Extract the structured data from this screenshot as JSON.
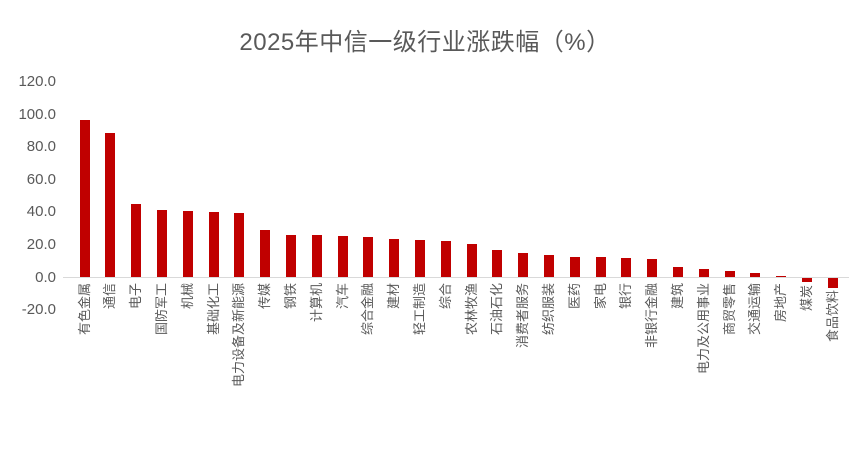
{
  "title": "2025年中信一级行业涨跌幅（%）",
  "colors": {
    "bar": "#C00000",
    "axis_line": "#D9D9D9",
    "tick_text": "#595959",
    "title_text": "#595959"
  },
  "chart_data": {
    "type": "bar",
    "title": "2025年中信一级行业涨跌幅（%）",
    "categories": [
      "有色金属",
      "通信",
      "电子",
      "国防军工",
      "机械",
      "基础化工",
      "电力设备及新能源",
      "传媒",
      "钢铁",
      "计算机",
      "汽车",
      "综合金融",
      "建材",
      "轻工制造",
      "综合",
      "农林牧渔",
      "石油石化",
      "消费者服务",
      "纺织服装",
      "医药",
      "家电",
      "银行",
      "非银行金融",
      "建筑",
      "电力及公用事业",
      "商贸零售",
      "交通运输",
      "房地产",
      "煤炭",
      "食品饮料"
    ],
    "values": [
      97.0,
      88.7,
      45.0,
      41.6,
      41.0,
      40.0,
      39.3,
      29.3,
      26.4,
      26.1,
      25.5,
      24.6,
      23.9,
      23.0,
      22.2,
      20.8,
      16.7,
      14.8,
      13.8,
      12.6,
      12.3,
      11.7,
      11.2,
      6.5,
      5.0,
      4.0,
      2.5,
      1.2,
      -2.8,
      -6.4
    ],
    "xlabel": "",
    "ylabel": "",
    "ylim": [
      -20,
      120
    ],
    "y_ticks": [
      120,
      100,
      80,
      60,
      40,
      20,
      0,
      -20
    ],
    "y_tick_labels": [
      "120.0",
      "100.0",
      "80.0",
      "60.0",
      "40.0",
      "20.0",
      "0.0",
      "-20.0"
    ],
    "grid": false,
    "legend": false,
    "bar_color": "#C00000"
  }
}
